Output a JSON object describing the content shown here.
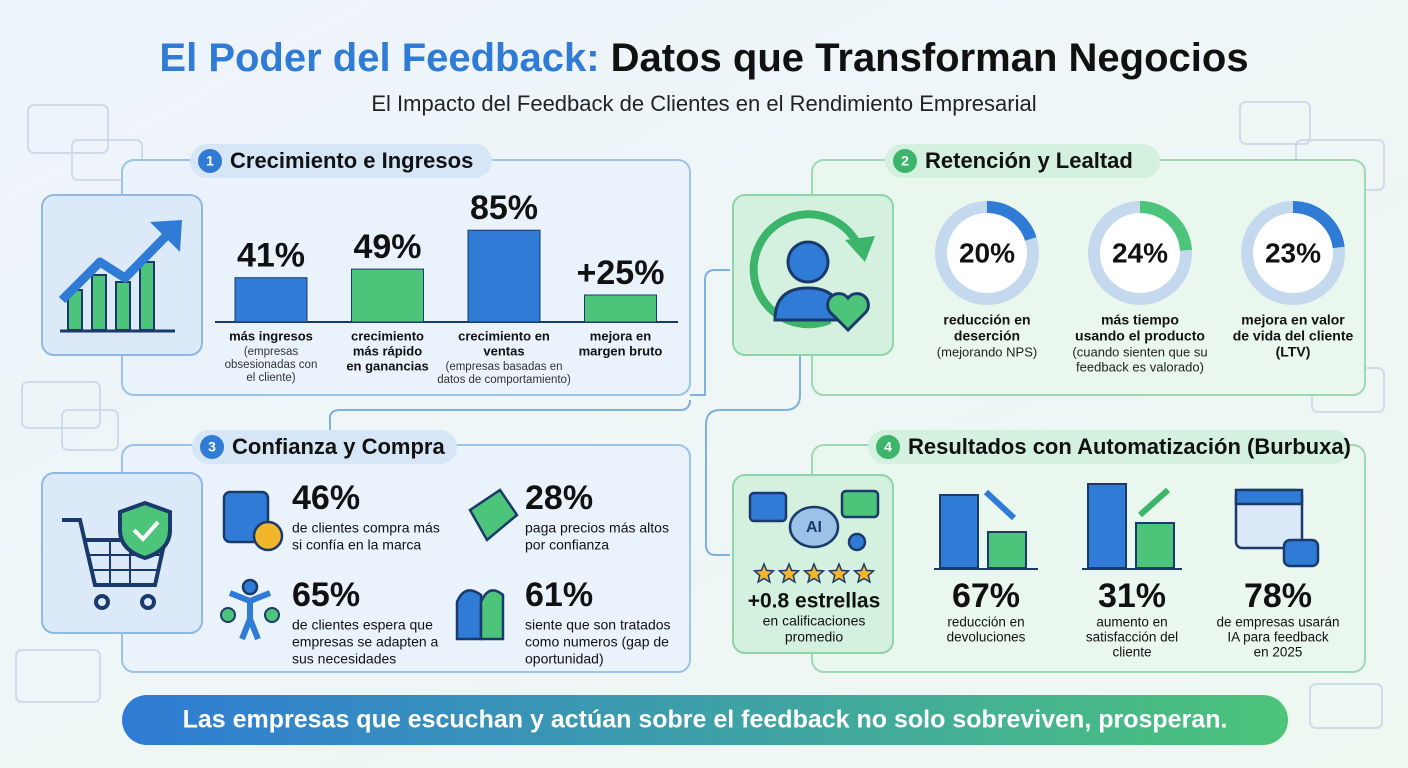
{
  "header": {
    "title_lead": "El Poder del Feedback:",
    "title_rest": "Datos que Transforman Negocios",
    "subtitle": "El Impacto del Feedback de Clientes en el Rendimiento Empresarial"
  },
  "sections": [
    {
      "number": "1",
      "title": "Crecimiento e Ingresos",
      "bars": [
        {
          "value": 41,
          "label": "41%",
          "color": "#2f7bd6",
          "text": [
            "más ingresos"
          ],
          "note": [
            "(empresas",
            "obsesionadas con",
            "el cliente)"
          ]
        },
        {
          "value": 49,
          "label": "49%",
          "color": "#4cc47a",
          "text": [
            "crecimiento",
            "más rápido",
            "en ganancias"
          ]
        },
        {
          "value": 85,
          "label": "85%",
          "color": "#2f7bd6",
          "text": [
            "crecimiento en",
            "ventas"
          ],
          "note": [
            "(empresas basadas en",
            "datos de comportamiento)"
          ]
        },
        {
          "value": 25,
          "label": "+25%",
          "color": "#4cc47a",
          "text": [
            "mejora en",
            "margen bruto"
          ]
        }
      ]
    },
    {
      "number": "2",
      "title": "Retención y Lealtad",
      "donuts": [
        {
          "value": 20,
          "label": "20%",
          "color": "#2f7bd6",
          "text": [
            "reducción en",
            "deserción"
          ],
          "note": [
            "(mejorando NPS)"
          ]
        },
        {
          "value": 24,
          "label": "24%",
          "color": "#4cc47a",
          "text": [
            "más tiempo",
            "usando el producto"
          ],
          "note": [
            "(cuando sienten que su",
            "feedback es valorado)"
          ]
        },
        {
          "value": 23,
          "label": "23%",
          "color": "#2f7bd6",
          "text": [
            "mejora en valor",
            "de vida del cliente",
            "(LTV)"
          ]
        }
      ]
    },
    {
      "number": "3",
      "title": "Confianza y Compra",
      "stats": [
        {
          "label": "46%",
          "text": [
            "de clientes compra más",
            "si confía en la marca"
          ]
        },
        {
          "label": "28%",
          "text": [
            "paga precios más altos",
            "por confianza"
          ]
        },
        {
          "label": "65%",
          "text": [
            "de clientes espera que",
            "empresas se adapten a",
            "sus necesidades"
          ]
        },
        {
          "label": "61%",
          "text": [
            "siente que son tratados",
            "como numeros (gap de",
            "oportunidad)"
          ]
        }
      ]
    },
    {
      "number": "4",
      "title": "Resultados con Automatización (Burbuxa)",
      "feature": {
        "icon_text": "AI",
        "label": "+0.8 estrellas",
        "text": [
          "en calificaciones",
          "promedio"
        ]
      },
      "stats": [
        {
          "label": "67%",
          "text": [
            "reducción en",
            "devoluciones"
          ]
        },
        {
          "label": "31%",
          "text": [
            "aumento en",
            "satisfacción del",
            "cliente"
          ]
        },
        {
          "label": "78%",
          "text": [
            "de empresas usarán",
            "IA para feedback",
            "en 2025"
          ]
        }
      ]
    }
  ],
  "footer": "Las empresas que escuchan y actúan sobre el feedback no solo sobreviven, prosperan."
}
